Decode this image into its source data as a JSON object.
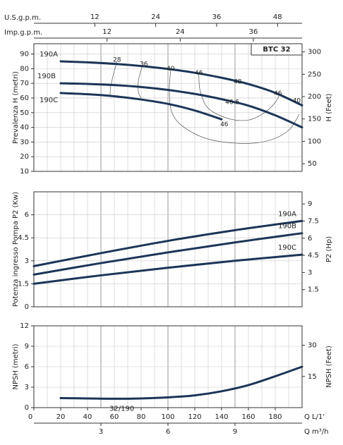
{
  "chart_data": [
    {
      "type": "line",
      "title": "BTC 32",
      "ylabel": "Prevalenza H (metri)",
      "y2label": "H (Feet)",
      "xlim": [
        0,
        200
      ],
      "ylim": [
        10,
        97
      ],
      "yticks": [
        10,
        20,
        30,
        40,
        50,
        60,
        70,
        80,
        90
      ],
      "y2lim": [
        32.81,
        318.24
      ],
      "y2ticks": [
        50,
        100,
        150,
        200,
        250,
        300
      ],
      "x2label": "U.S.g.p.m.",
      "x2lim": [
        0,
        52.83
      ],
      "x2ticks": [
        12,
        24,
        36,
        48
      ],
      "x3label": "Imp.g.p.m.",
      "x3lim": [
        0,
        43.99
      ],
      "x3ticks": [
        12,
        24,
        36
      ],
      "grid": true,
      "series": [
        {
          "name": "190A",
          "color": "#1d3557",
          "x": [
            20,
            40,
            60,
            80,
            100,
            120,
            140,
            160,
            180,
            200
          ],
          "values": [
            85,
            84.3,
            83.3,
            81.8,
            79.8,
            77.2,
            73.8,
            69.5,
            63.5,
            55
          ]
        },
        {
          "name": "190B",
          "color": "#1d3557",
          "x": [
            20,
            40,
            60,
            80,
            100,
            120,
            140,
            160,
            180,
            200
          ],
          "values": [
            70,
            69.6,
            68.8,
            67.5,
            65.5,
            62.8,
            59.2,
            54.8,
            48.2,
            40
          ]
        },
        {
          "name": "190C",
          "color": "#1d3557",
          "x": [
            20,
            40,
            60,
            80,
            100,
            120,
            140
          ],
          "values": [
            63.4,
            62.6,
            61.2,
            59,
            56,
            51.5,
            45.5
          ]
        }
      ],
      "efficiency_curves": [
        {
          "x": [
            62,
            59,
            57,
            57
          ],
          "y": [
            85,
            75,
            66,
            61
          ]
        },
        {
          "x": [
            81,
            78,
            78,
            80
          ],
          "y": [
            82,
            72,
            64,
            60
          ]
        },
        {
          "x": [
            102,
            101,
            103,
            112,
            130,
            155,
            175,
            190,
            198
          ],
          "y": [
            79,
            65,
            50,
            40,
            32,
            29,
            31,
            38,
            49
          ]
        },
        {
          "x": [
            123,
            124,
            130,
            145,
            160,
            172,
            180,
            183
          ],
          "y": [
            76,
            65,
            53,
            46,
            45,
            50,
            57,
            62
          ]
        }
      ],
      "annotations": [
        {
          "text": "28",
          "x": 62,
          "y": 86
        },
        {
          "text": "36",
          "x": 82,
          "y": 83
        },
        {
          "text": "40",
          "x": 102,
          "y": 80
        },
        {
          "text": "46",
          "x": 123,
          "y": 77
        },
        {
          "text": "48",
          "x": 152,
          "y": 71
        },
        {
          "text": "46",
          "x": 182,
          "y": 63
        },
        {
          "text": "40",
          "x": 196,
          "y": 58
        },
        {
          "text": "46.5",
          "x": 148,
          "y": 57
        },
        {
          "text": "46",
          "x": 142,
          "y": 42
        }
      ]
    },
    {
      "type": "line",
      "ylabel": "Potenza ingresso Pompa P2 (Kw)",
      "y2label": "P2 (Hp)",
      "xlim": [
        0,
        200
      ],
      "ylim": [
        0,
        7.5
      ],
      "yticks": [
        0,
        1.5,
        3,
        4.5,
        6
      ],
      "y2lim": [
        0,
        10.06
      ],
      "y2ticks": [
        1.5,
        3,
        4.5,
        6,
        7.5,
        9
      ],
      "grid": true,
      "series": [
        {
          "name": "190A",
          "color": "#1d3557",
          "x": [
            0,
            50,
            100,
            150,
            200
          ],
          "values": [
            2.65,
            3.5,
            4.3,
            5.0,
            5.6
          ]
        },
        {
          "name": "190B",
          "color": "#1d3557",
          "x": [
            0,
            50,
            100,
            150,
            200
          ],
          "values": [
            2.1,
            2.85,
            3.55,
            4.2,
            4.8
          ]
        },
        {
          "name": "190C",
          "color": "#1d3557",
          "x": [
            0,
            50,
            100,
            150,
            200
          ],
          "values": [
            1.5,
            2.05,
            2.55,
            3.0,
            3.4
          ]
        }
      ]
    },
    {
      "type": "line",
      "ylabel": "NPSH (metri)",
      "y2label": "NPSH (Feet)",
      "xlabel": "Q L/1'",
      "xlim": [
        0,
        200
      ],
      "xticks": [
        0,
        20,
        40,
        60,
        80,
        100,
        120,
        140,
        160,
        180
      ],
      "x2label": "Q m³/h",
      "x2lim": [
        0,
        12
      ],
      "x2ticks": [
        3,
        6,
        9
      ],
      "ylim": [
        0,
        12
      ],
      "yticks": [
        0,
        3,
        6,
        9,
        12
      ],
      "y2lim": [
        0,
        39.37
      ],
      "y2ticks": [
        15,
        30
      ],
      "grid": true,
      "series": [
        {
          "name": "32/190",
          "color": "#1d3557",
          "x": [
            20,
            40,
            60,
            80,
            100,
            120,
            140,
            160,
            180,
            200
          ],
          "values": [
            1.4,
            1.35,
            1.3,
            1.35,
            1.5,
            1.8,
            2.4,
            3.3,
            4.6,
            6.0
          ]
        }
      ]
    }
  ]
}
